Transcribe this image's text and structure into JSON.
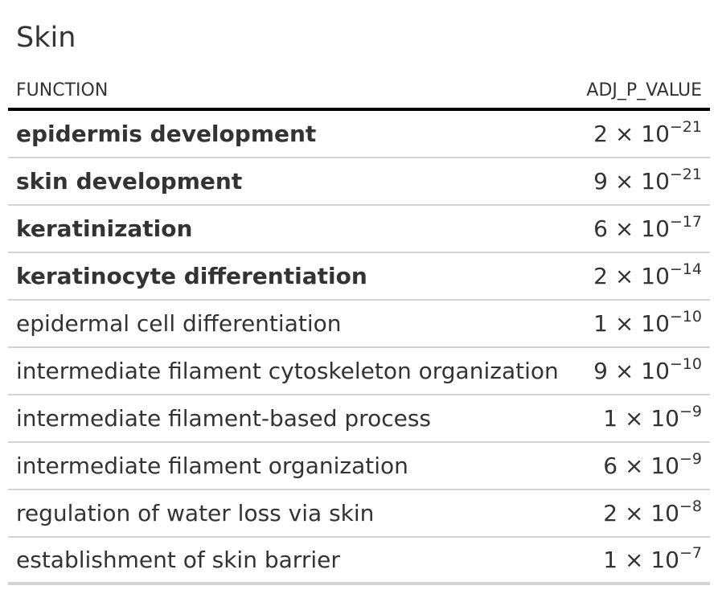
{
  "chart_data": {
    "type": "table",
    "title": "Skin",
    "columns": [
      "FUNCTION",
      "ADJ_P_VALUE"
    ],
    "rows": [
      {
        "function": "epidermis development",
        "mantissa": "2",
        "exponent": "−21",
        "adj_p_value": 2e-21,
        "bold": true
      },
      {
        "function": "skin development",
        "mantissa": "9",
        "exponent": "−21",
        "adj_p_value": 9e-21,
        "bold": true
      },
      {
        "function": "keratinization",
        "mantissa": "6",
        "exponent": "−17",
        "adj_p_value": 6e-17,
        "bold": true
      },
      {
        "function": "keratinocyte differentiation",
        "mantissa": "2",
        "exponent": "−14",
        "adj_p_value": 2e-14,
        "bold": true
      },
      {
        "function": "epidermal cell differentiation",
        "mantissa": "1",
        "exponent": "−10",
        "adj_p_value": 1e-10,
        "bold": false
      },
      {
        "function": "intermediate filament cytoskeleton organization",
        "mantissa": "9",
        "exponent": "−10",
        "adj_p_value": 9e-10,
        "bold": false
      },
      {
        "function": "intermediate filament-based process",
        "mantissa": "1",
        "exponent": "−9",
        "adj_p_value": 1e-09,
        "bold": false
      },
      {
        "function": "intermediate filament organization",
        "mantissa": "6",
        "exponent": "−9",
        "adj_p_value": 6e-09,
        "bold": false
      },
      {
        "function": "regulation of water loss via skin",
        "mantissa": "2",
        "exponent": "−8",
        "adj_p_value": 2e-08,
        "bold": false
      },
      {
        "function": "establishment of skin barrier",
        "mantissa": "1",
        "exponent": "−7",
        "adj_p_value": 1e-07,
        "bold": false
      }
    ]
  },
  "colors": {
    "text": "#333333",
    "header_rule": "#000000",
    "row_rule": "#d3d3d3"
  }
}
